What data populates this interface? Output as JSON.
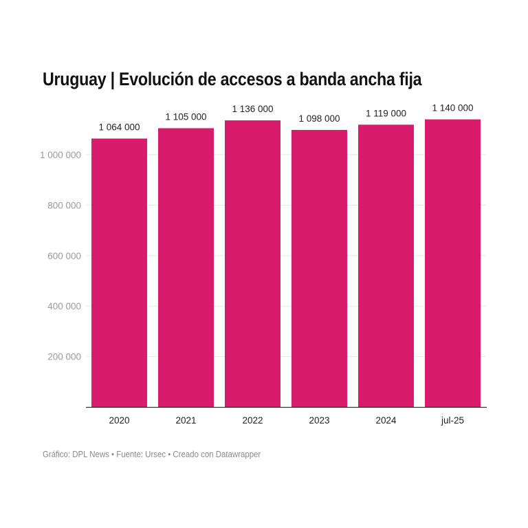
{
  "chart_data": {
    "type": "bar",
    "title": "Uruguay | Evolución de accesos a banda ancha fija",
    "categories": [
      "2020",
      "2021",
      "2022",
      "2023",
      "2024",
      "jul-25"
    ],
    "values": [
      1064000,
      1105000,
      1136000,
      1098000,
      1119000,
      1140000
    ],
    "data_labels": [
      "1 064 000",
      "1 105 000",
      "1 136 000",
      "1 098 000",
      "1 119 000",
      "1 140 000"
    ],
    "y_ticks": [
      200000,
      400000,
      600000,
      800000,
      1000000
    ],
    "y_tick_labels": [
      "200 000",
      "400 000",
      "600 000",
      "800 000",
      "1 000 000"
    ],
    "xlabel": "",
    "ylabel": "",
    "ylim": [
      0,
      1000000
    ],
    "grid": true,
    "bar_color": "#d81b6a"
  },
  "footer": "Gráfico: DPL News • Fuente: Ursec • Creado con Datawrapper"
}
